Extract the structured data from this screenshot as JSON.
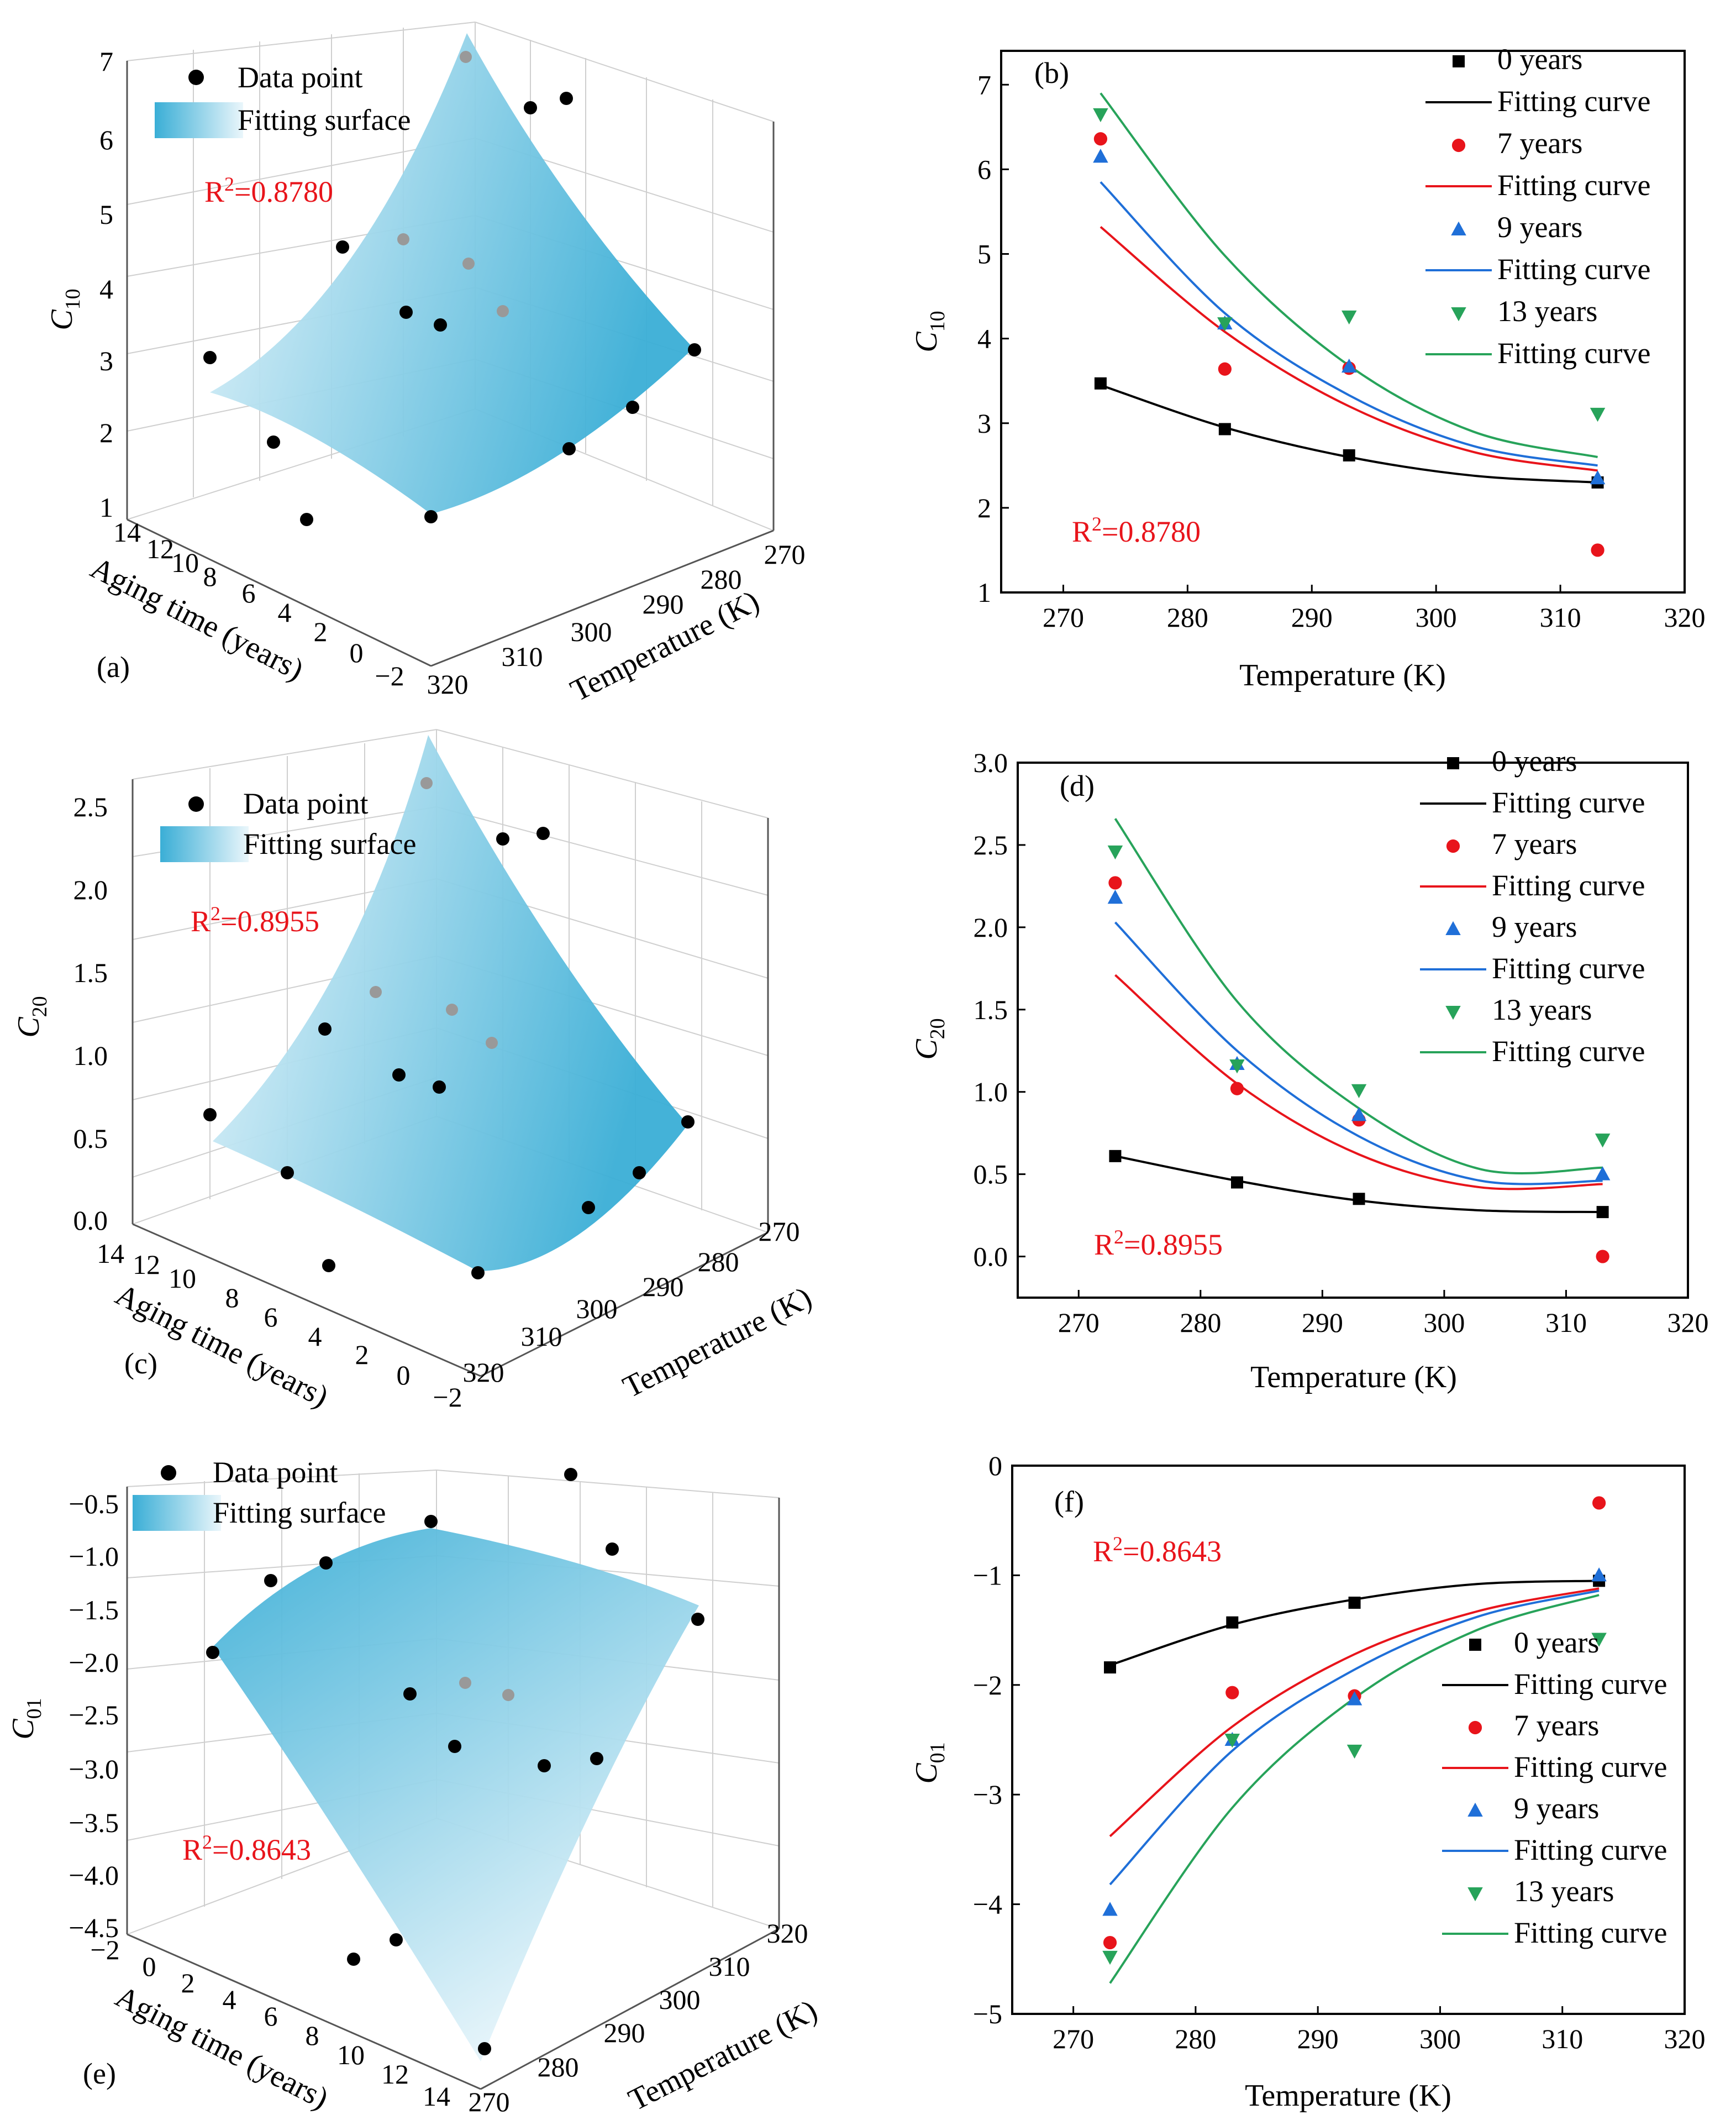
{
  "legend3d": {
    "point": "Data point",
    "surface": "Fitting surface"
  },
  "labels": {
    "aging": "Aging time (years)",
    "temp": "Temperature (K)"
  },
  "legendLabels": [
    "0 years",
    "Fitting curve",
    "7 years",
    "Fitting curve",
    "9 years",
    "Fitting curve",
    "13 years",
    "Fitting curve"
  ],
  "colors": {
    "y0": "#000000",
    "y7": "#e8141b",
    "y9": "#1f6fd8",
    "y13": "#27a35a",
    "text_red": "#e8141b",
    "surface_dark": "#3aaed6",
    "surface_light": "#eaf6fb"
  },
  "chart_data": [
    {
      "id": "a",
      "type": "scatter3d",
      "panel_label": "(a)",
      "ylabel_main": "C",
      "ylabel_sub": "10",
      "r2_label": "R",
      "r2_sup": "2",
      "r2_value": "=0.8780",
      "z_ticks": [
        "1",
        "2",
        "3",
        "4",
        "5",
        "6",
        "7"
      ],
      "aging_ticks": [
        "14",
        "12",
        "10",
        "8",
        "6",
        "4",
        "2",
        "0",
        "−2"
      ],
      "temp_ticks": [
        "270",
        "280",
        "290",
        "300",
        "310",
        "320"
      ]
    },
    {
      "id": "b",
      "type": "line",
      "panel_label": "(b)",
      "ylabel_main": "C",
      "ylabel_sub": "10",
      "xlabel": "Temperature (K)",
      "xlim": [
        265,
        320
      ],
      "ylim": [
        1,
        7.4
      ],
      "xticks": [
        270,
        280,
        290,
        300,
        310,
        320
      ],
      "yticks": [
        1,
        2,
        3,
        4,
        5,
        6,
        7
      ],
      "x_tick_labels": [
        "270",
        "280",
        "290",
        "300",
        "310",
        "320"
      ],
      "y_tick_labels": [
        "1",
        "2",
        "3",
        "4",
        "5",
        "6",
        "7"
      ],
      "r2_label": "R",
      "r2_sup": "2",
      "r2_value": "=0.8780",
      "series": [
        {
          "name": "0 years",
          "marker": "square",
          "color": "#000000",
          "x": [
            273,
            283,
            293,
            313
          ],
          "y": [
            3.47,
            2.93,
            2.62,
            2.3
          ],
          "fit": [
            [
              273,
              3.45
            ],
            [
              283,
              2.95
            ],
            [
              293,
              2.6
            ],
            [
              303,
              2.38
            ],
            [
              313,
              2.3
            ]
          ]
        },
        {
          "name": "7 years",
          "marker": "circle",
          "color": "#e8141b",
          "x": [
            273,
            283,
            293,
            313
          ],
          "y": [
            6.36,
            3.64,
            3.65,
            1.5
          ],
          "fit": [
            [
              273,
              5.32
            ],
            [
              283,
              4.08
            ],
            [
              293,
              3.2
            ],
            [
              303,
              2.66
            ],
            [
              313,
              2.44
            ]
          ]
        },
        {
          "name": "9 years",
          "marker": "triangle-up",
          "color": "#1f6fd8",
          "x": [
            273,
            283,
            293,
            313
          ],
          "y": [
            6.15,
            4.18,
            3.67,
            2.35
          ],
          "fit": [
            [
              273,
              5.85
            ],
            [
              283,
              4.3
            ],
            [
              293,
              3.33
            ],
            [
              303,
              2.73
            ],
            [
              313,
              2.5
            ]
          ]
        },
        {
          "name": "13 years",
          "marker": "triangle-down",
          "color": "#27a35a",
          "x": [
            273,
            283,
            293,
            313
          ],
          "y": [
            6.65,
            4.18,
            4.26,
            3.11
          ],
          "fit": [
            [
              273,
              6.9
            ],
            [
              283,
              4.98
            ],
            [
              293,
              3.68
            ],
            [
              303,
              2.9
            ],
            [
              313,
              2.6
            ]
          ]
        }
      ]
    },
    {
      "id": "c",
      "type": "scatter3d",
      "panel_label": "(c)",
      "ylabel_main": "C",
      "ylabel_sub": "20",
      "r2_label": "R",
      "r2_sup": "2",
      "r2_value": "=0.8955",
      "z_ticks": [
        "0.0",
        "0.5",
        "1.0",
        "1.5",
        "2.0",
        "2.5"
      ],
      "aging_ticks": [
        "14",
        "12",
        "10",
        "8",
        "6",
        "4",
        "2",
        "0",
        "−2"
      ],
      "temp_ticks": [
        "270",
        "280",
        "290",
        "300",
        "310",
        "320"
      ]
    },
    {
      "id": "d",
      "type": "line",
      "panel_label": "(d)",
      "ylabel_main": "C",
      "ylabel_sub": "20",
      "xlabel": "Temperature (K)",
      "xlim": [
        265,
        320
      ],
      "ylim": [
        -0.25,
        3.0
      ],
      "xticks": [
        270,
        280,
        290,
        300,
        310,
        320
      ],
      "yticks": [
        0,
        0.5,
        1,
        1.5,
        2,
        2.5,
        3
      ],
      "x_tick_labels": [
        "270",
        "280",
        "290",
        "300",
        "310",
        "320"
      ],
      "y_tick_labels": [
        "0.0",
        "0.5",
        "1.0",
        "1.5",
        "2.0",
        "2.5",
        "3.0"
      ],
      "r2_label": "R",
      "r2_sup": "2",
      "r2_value": "=0.8955",
      "series": [
        {
          "name": "0 years",
          "marker": "square",
          "color": "#000000",
          "x": [
            273,
            283,
            293,
            313
          ],
          "y": [
            0.61,
            0.45,
            0.35,
            0.27
          ],
          "fit": [
            [
              273,
              0.61
            ],
            [
              283,
              0.46
            ],
            [
              293,
              0.34
            ],
            [
              303,
              0.28
            ],
            [
              313,
              0.27
            ]
          ]
        },
        {
          "name": "7 years",
          "marker": "circle",
          "color": "#e8141b",
          "x": [
            273,
            283,
            293,
            313
          ],
          "y": [
            2.27,
            1.02,
            0.83,
            0.0
          ],
          "fit": [
            [
              273,
              1.71
            ],
            [
              283,
              1.05
            ],
            [
              293,
              0.62
            ],
            [
              303,
              0.42
            ],
            [
              313,
              0.44
            ]
          ]
        },
        {
          "name": "9 years",
          "marker": "triangle-up",
          "color": "#1f6fd8",
          "x": [
            273,
            283,
            293,
            313
          ],
          "y": [
            2.18,
            1.17,
            0.86,
            0.5
          ],
          "fit": [
            [
              273,
              2.03
            ],
            [
              283,
              1.25
            ],
            [
              293,
              0.73
            ],
            [
              303,
              0.46
            ],
            [
              313,
              0.46
            ]
          ]
        },
        {
          "name": "13 years",
          "marker": "triangle-down",
          "color": "#27a35a",
          "x": [
            273,
            283,
            293,
            313
          ],
          "y": [
            2.46,
            1.16,
            1.01,
            0.71
          ],
          "fit": [
            [
              273,
              2.66
            ],
            [
              283,
              1.55
            ],
            [
              293,
              0.9
            ],
            [
              303,
              0.53
            ],
            [
              313,
              0.54
            ]
          ]
        }
      ]
    },
    {
      "id": "e",
      "type": "scatter3d",
      "panel_label": "(e)",
      "ylabel_main": "C",
      "ylabel_sub": "01",
      "r2_label": "R",
      "r2_sup": "2",
      "r2_value": "=0.8643",
      "z_ticks": [
        "−4.5",
        "−4.0",
        "−3.5",
        "−3.0",
        "−2.5",
        "−2.0",
        "−1.5",
        "−1.0",
        "−0.5"
      ],
      "aging_ticks": [
        "−2",
        "0",
        "2",
        "4",
        "6",
        "8",
        "10",
        "12",
        "14"
      ],
      "temp_ticks": [
        "270",
        "280",
        "290",
        "300",
        "310",
        "320"
      ]
    },
    {
      "id": "f",
      "type": "line",
      "panel_label": "(f)",
      "ylabel_main": "C",
      "ylabel_sub": "01",
      "xlabel": "Temperature (K)",
      "xlim": [
        265,
        320
      ],
      "ylim": [
        -5,
        0
      ],
      "xticks": [
        270,
        280,
        290,
        300,
        310,
        320
      ],
      "yticks": [
        -5,
        -4,
        -3,
        -2,
        -1,
        0
      ],
      "x_tick_labels": [
        "270",
        "280",
        "290",
        "300",
        "310",
        "320"
      ],
      "y_tick_labels": [
        "−5",
        "−4",
        "−3",
        "−2",
        "−1",
        "0"
      ],
      "r2_label": "R",
      "r2_sup": "2",
      "r2_value": "=0.8643",
      "series": [
        {
          "name": "0 years",
          "marker": "square",
          "color": "#000000",
          "x": [
            273,
            283,
            293,
            313
          ],
          "y": [
            -1.84,
            -1.43,
            -1.25,
            -1.05
          ],
          "fit": [
            [
              273,
              -1.82
            ],
            [
              283,
              -1.45
            ],
            [
              293,
              -1.22
            ],
            [
              303,
              -1.08
            ],
            [
              313,
              -1.05
            ]
          ]
        },
        {
          "name": "7 years",
          "marker": "circle",
          "color": "#e8141b",
          "x": [
            273,
            283,
            293,
            313
          ],
          "y": [
            -4.35,
            -2.07,
            -2.1,
            -0.34
          ],
          "fit": [
            [
              273,
              -3.38
            ],
            [
              283,
              -2.38
            ],
            [
              293,
              -1.72
            ],
            [
              303,
              -1.33
            ],
            [
              313,
              -1.12
            ]
          ]
        },
        {
          "name": "9 years",
          "marker": "triangle-up",
          "color": "#1f6fd8",
          "x": [
            273,
            283,
            293,
            313
          ],
          "y": [
            -4.05,
            -2.5,
            -2.13,
            -1.0
          ],
          "fit": [
            [
              273,
              -3.82
            ],
            [
              283,
              -2.6
            ],
            [
              293,
              -1.86
            ],
            [
              303,
              -1.38
            ],
            [
              313,
              -1.14
            ]
          ]
        },
        {
          "name": "13 years",
          "marker": "triangle-down",
          "color": "#27a35a",
          "x": [
            273,
            283,
            293,
            313
          ],
          "y": [
            -4.48,
            -2.5,
            -2.6,
            -1.58
          ],
          "fit": [
            [
              273,
              -4.72
            ],
            [
              283,
              -3.12
            ],
            [
              293,
              -2.12
            ],
            [
              303,
              -1.5
            ],
            [
              313,
              -1.18
            ]
          ]
        }
      ]
    }
  ]
}
